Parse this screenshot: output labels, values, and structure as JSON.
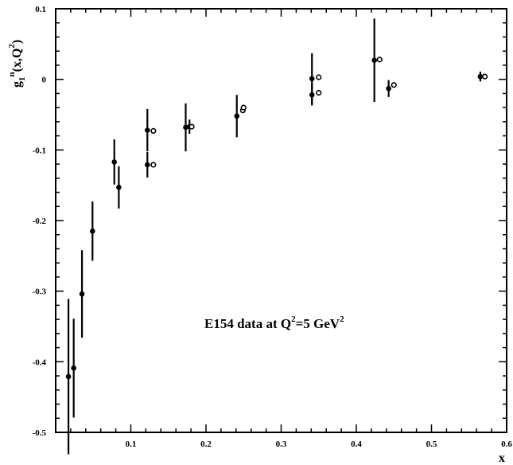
{
  "chart_data": {
    "type": "scatter",
    "title": "",
    "xlabel": "x",
    "ylabel": "g1n(x,Q2)",
    "xlim": [
      0.0,
      0.6
    ],
    "ylim": [
      -0.5,
      0.1
    ],
    "x_ticks": [
      0.1,
      0.2,
      0.3,
      0.4,
      0.5,
      0.6
    ],
    "x_tick_labels": [
      "0.1",
      "0.2",
      "0.3",
      "0.4",
      "0.5",
      "0.6"
    ],
    "y_ticks": [
      -0.5,
      -0.4,
      -0.3,
      -0.2,
      -0.1,
      0,
      0.1
    ],
    "y_tick_labels": [
      "-0.5",
      "-0.4",
      "-0.3",
      "-0.2",
      "-0.1",
      "0",
      "0.1"
    ],
    "grid": false,
    "annotation": {
      "prefix": "E154 data at Q",
      "sup1": "2",
      "middle": "=5 GeV",
      "sup2": "2"
    },
    "series": [
      {
        "marker": "filled-circle",
        "points": [
          {
            "x": 0.017,
            "y": -0.421,
            "err": 0.11
          },
          {
            "x": 0.024,
            "y": -0.409,
            "err": 0.07
          },
          {
            "x": 0.035,
            "y": -0.304,
            "err": 0.062
          },
          {
            "x": 0.049,
            "y": -0.215,
            "err": 0.042
          },
          {
            "x": 0.078,
            "y": -0.117,
            "err": 0.032
          },
          {
            "x": 0.084,
            "y": -0.153,
            "err": 0.03
          },
          {
            "x": 0.122,
            "y": -0.072,
            "err": 0.03
          },
          {
            "x": 0.122,
            "y": -0.121,
            "err": 0.018
          },
          {
            "x": 0.173,
            "y": -0.068,
            "err": 0.034
          },
          {
            "x": 0.178,
            "y": -0.067,
            "err": 0.01
          },
          {
            "x": 0.241,
            "y": -0.052,
            "err": 0.03
          },
          {
            "x": 0.341,
            "y": 0.001,
            "err": 0.036
          },
          {
            "x": 0.341,
            "y": -0.022,
            "err": 0.015
          },
          {
            "x": 0.424,
            "y": 0.027,
            "err": 0.059
          },
          {
            "x": 0.443,
            "y": -0.013,
            "err": 0.012
          },
          {
            "x": 0.565,
            "y": 0.004,
            "err": 0.007
          }
        ]
      },
      {
        "marker": "open-circle",
        "points": [
          {
            "x": 0.13,
            "y": -0.073
          },
          {
            "x": 0.13,
            "y": -0.121
          },
          {
            "x": 0.181,
            "y": -0.067
          },
          {
            "x": 0.249,
            "y": -0.044
          },
          {
            "x": 0.25,
            "y": -0.04
          },
          {
            "x": 0.35,
            "y": 0.003
          },
          {
            "x": 0.35,
            "y": -0.019
          },
          {
            "x": 0.431,
            "y": 0.028
          },
          {
            "x": 0.45,
            "y": -0.008
          },
          {
            "x": 0.571,
            "y": 0.004
          }
        ]
      }
    ]
  }
}
